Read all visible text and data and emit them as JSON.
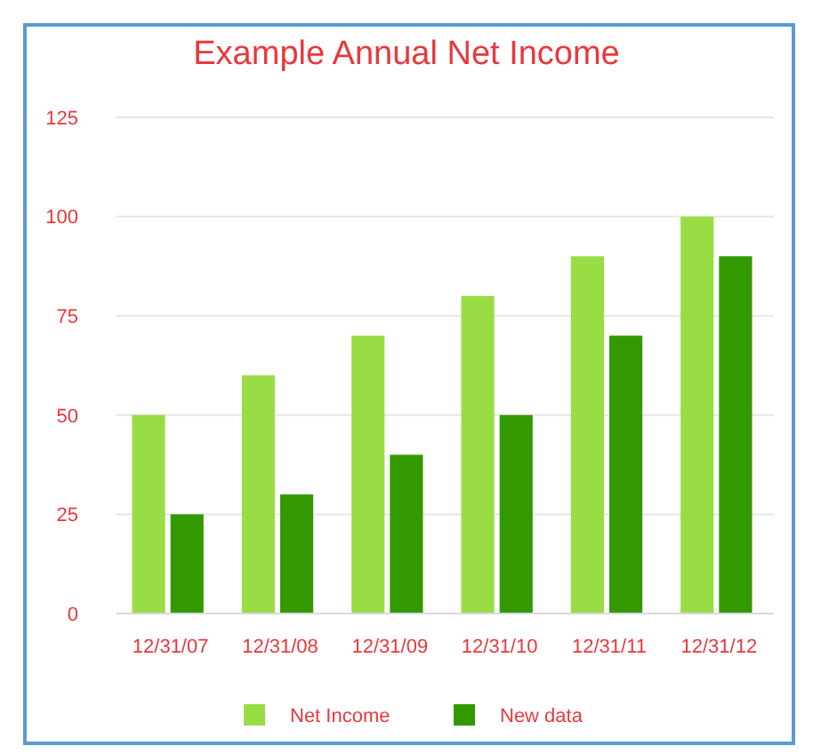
{
  "chart_data": {
    "type": "bar",
    "title": "Example Annual Net Income",
    "categories": [
      "12/31/07",
      "12/31/08",
      "12/31/09",
      "12/31/10",
      "12/31/11",
      "12/31/12"
    ],
    "series": [
      {
        "name": "Net Income",
        "color": "#99dd44",
        "values": [
          50,
          60,
          70,
          80,
          90,
          100
        ]
      },
      {
        "name": "New data",
        "color": "#339900",
        "values": [
          25,
          30,
          40,
          50,
          70,
          90
        ]
      }
    ],
    "ylim": [
      0,
      125
    ],
    "yticks": [
      0,
      25,
      50,
      75,
      100,
      125
    ],
    "grid": "y",
    "legend": "bottom"
  }
}
